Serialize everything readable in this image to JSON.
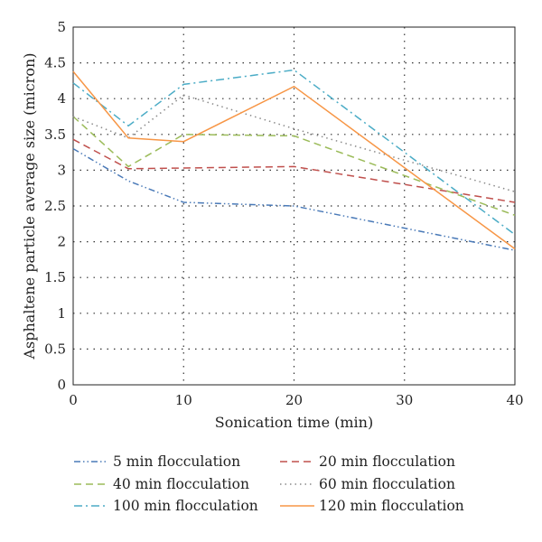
{
  "chart_data": {
    "type": "line",
    "title": "",
    "xlabel": "Sonication time (min)",
    "ylabel": "Asphaltene particle average size (micron)",
    "xlim": [
      0,
      40
    ],
    "ylim": [
      0,
      5
    ],
    "xticks": [
      0,
      10,
      20,
      30,
      40
    ],
    "yticks": [
      0,
      0.5,
      1,
      1.5,
      2,
      2.5,
      3,
      3.5,
      4,
      4.5,
      5
    ],
    "xtick_labels": [
      "0",
      "10",
      "20",
      "30",
      "40"
    ],
    "ytick_labels": [
      "0",
      "0.5",
      "1",
      "1.5",
      "2",
      "2.5",
      "3",
      "3.5",
      "4",
      "4.5",
      "5"
    ],
    "grid": "dotted",
    "legend_position": "bottom",
    "x": [
      0,
      5,
      10,
      20,
      40
    ],
    "series": [
      {
        "name": "5 min flocculation",
        "values": [
          3.3,
          2.85,
          2.55,
          2.5,
          1.88
        ],
        "color": "#4a7ab8",
        "dash": "dashdotdot"
      },
      {
        "name": "20 min flocculation",
        "values": [
          3.43,
          3.02,
          3.03,
          3.05,
          2.55
        ],
        "color": "#c0504d",
        "dash": "dashed"
      },
      {
        "name": "40 min flocculation",
        "values": [
          3.75,
          3.05,
          3.5,
          3.48,
          2.37
        ],
        "color": "#9bbb59",
        "dash": "dashed"
      },
      {
        "name": "60 min flocculation",
        "values": [
          3.75,
          3.45,
          4.05,
          3.58,
          2.7
        ],
        "color": "#8a8a8a",
        "dash": "dotted"
      },
      {
        "name": "100 min flocculation",
        "values": [
          4.22,
          3.62,
          4.2,
          4.4,
          2.1
        ],
        "color": "#4bacc6",
        "dash": "dashdot"
      },
      {
        "name": "120 min flocculation",
        "values": [
          4.38,
          3.45,
          3.4,
          4.17,
          1.9
        ],
        "color": "#f79646",
        "dash": "solid"
      }
    ]
  }
}
